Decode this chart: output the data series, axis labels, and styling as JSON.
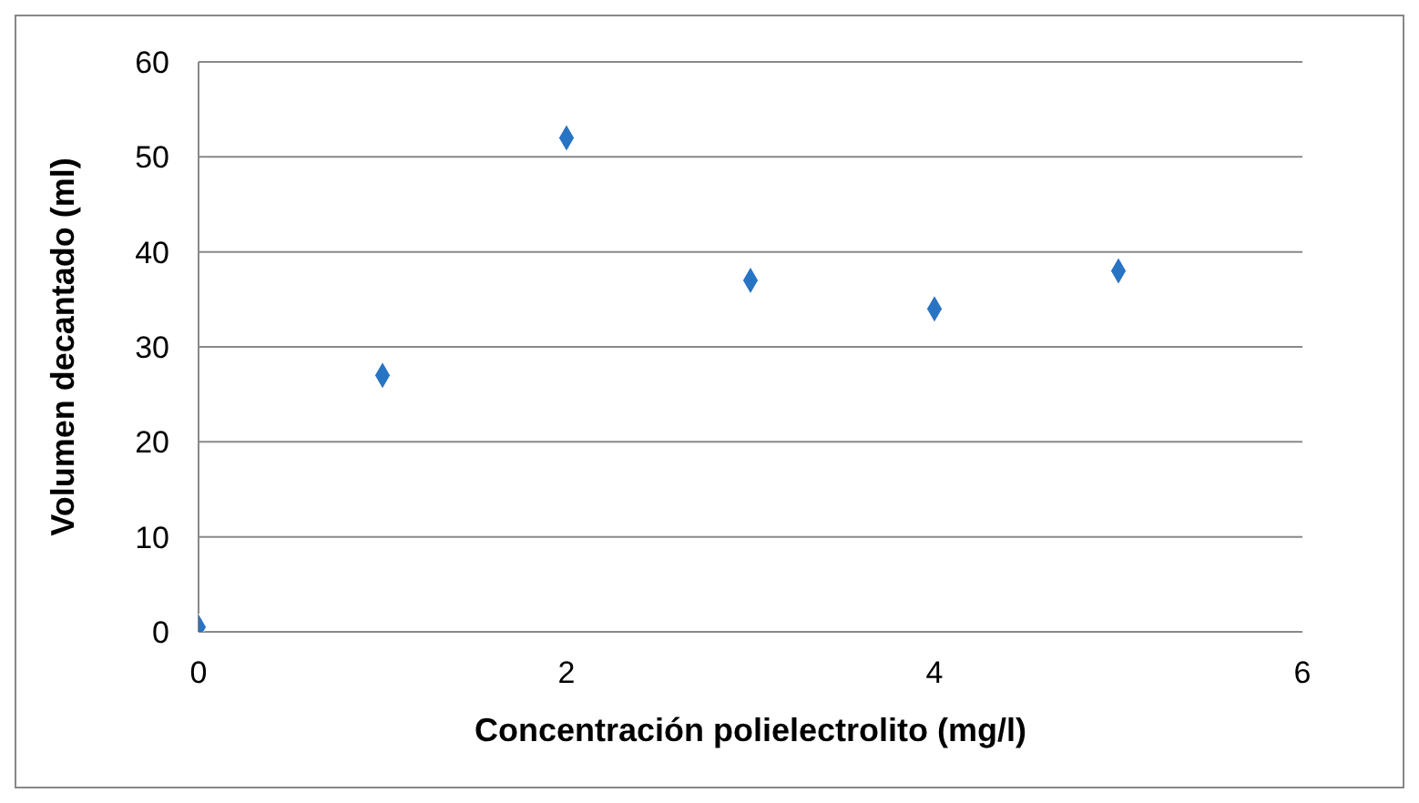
{
  "chart_data": {
    "type": "scatter",
    "xlabel": "Concentración polielectrolito (mg/l)",
    "ylabel": "Volumen  decantado (ml)",
    "x": [
      0,
      1,
      2,
      3,
      4,
      5
    ],
    "values": [
      0.5,
      27,
      52,
      37,
      34,
      38
    ],
    "color": "#2874c4",
    "marker": "diamond",
    "grid": "y",
    "xlim": [
      0,
      6
    ],
    "xticks": [
      0,
      2,
      4,
      6
    ],
    "ylim": [
      0,
      60
    ],
    "yticks": [
      0,
      10,
      20,
      30,
      40,
      50,
      60
    ]
  }
}
